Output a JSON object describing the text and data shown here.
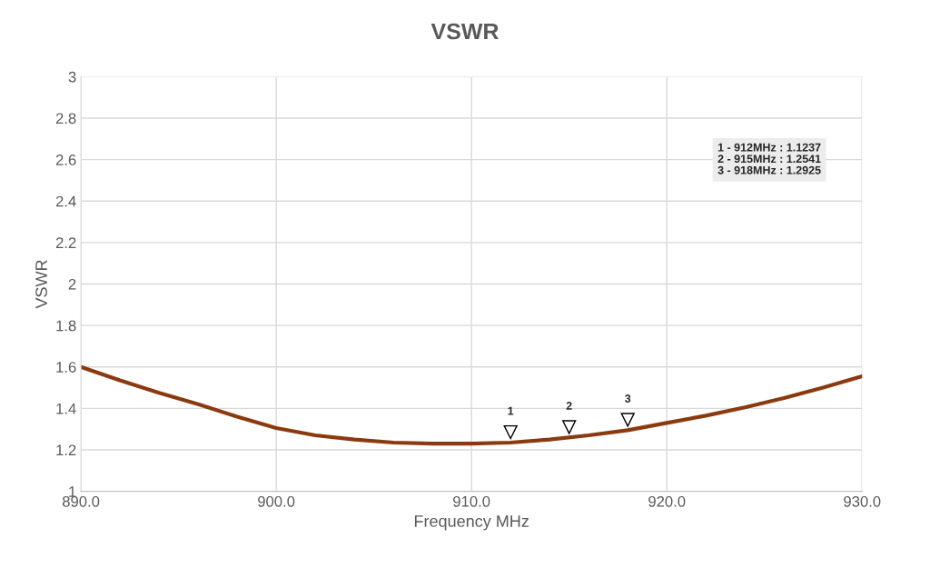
{
  "chart_data": {
    "type": "line",
    "title": "VSWR",
    "xlabel": "Frequency MHz",
    "ylabel": "VSWR",
    "x": [
      890,
      892,
      894,
      896,
      898,
      900,
      902,
      904,
      906,
      908,
      910,
      912,
      914,
      916,
      918,
      920,
      922,
      924,
      926,
      928,
      930
    ],
    "series": [
      {
        "color": "#8b3a0f",
        "values": [
          1.6,
          1.535,
          1.475,
          1.42,
          1.36,
          1.305,
          1.27,
          1.25,
          1.235,
          1.23,
          1.23,
          1.235,
          1.25,
          1.27,
          1.295,
          1.33,
          1.365,
          1.405,
          1.45,
          1.5,
          1.555
        ]
      }
    ],
    "xlim": [
      890,
      930
    ],
    "xticks": [
      {
        "value": 890,
        "label": "890.0"
      },
      {
        "value": 900,
        "label": "900.0"
      },
      {
        "value": 910,
        "label": "910.0"
      },
      {
        "value": 920,
        "label": "920.0"
      },
      {
        "value": 930,
        "label": "930.0"
      }
    ],
    "ylim": [
      1,
      3
    ],
    "yticks": [
      1,
      1.2,
      1.4,
      1.6,
      1.8,
      2,
      2.2,
      2.4,
      2.6,
      2.8,
      3
    ],
    "grid": true,
    "marker": "none",
    "line_style": "solid",
    "annotations": [
      {
        "text": "1",
        "x": 912,
        "y": 1.235
      },
      {
        "text": "2",
        "x": 915,
        "y": 1.26
      },
      {
        "text": "3",
        "x": 918,
        "y": 1.295
      },
      "1 - 912MHz : 1.1237",
      "2 - 915MHz : 1.2541",
      "3 - 918MHz : 1.2925"
    ]
  }
}
